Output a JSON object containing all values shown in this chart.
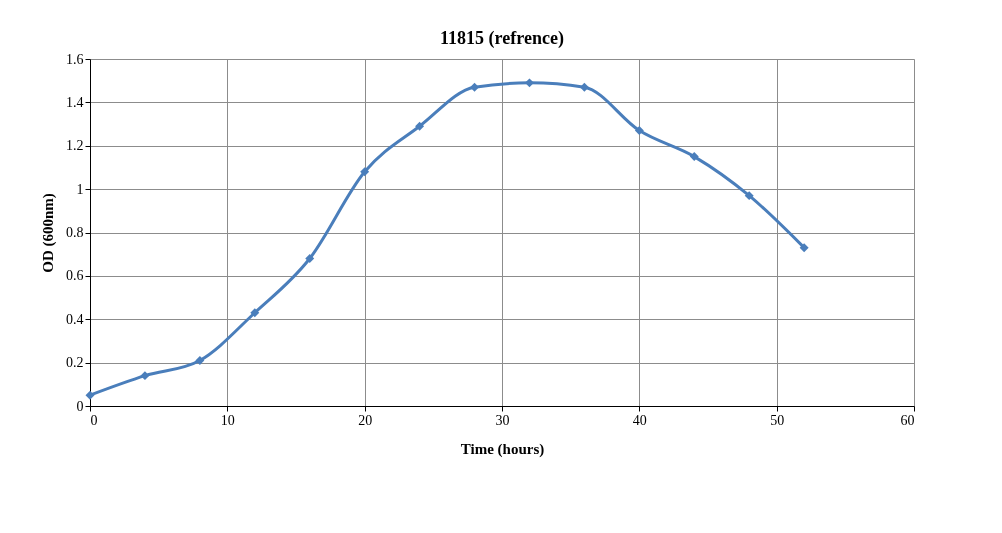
{
  "chart_data": {
    "type": "line",
    "title": "11815 (refrence)",
    "xlabel": "Time (hours)",
    "ylabel": "OD (600nm)",
    "x": [
      0,
      4,
      8,
      12,
      16,
      20,
      24,
      28,
      32,
      36,
      40,
      44,
      48,
      52
    ],
    "series": [
      {
        "color": "#4a7ebb",
        "values": [
          0.05,
          0.14,
          0.21,
          0.43,
          0.68,
          1.08,
          1.29,
          1.47,
          1.49,
          1.47,
          1.27,
          1.15,
          0.97,
          0.73
        ]
      }
    ],
    "xlim": [
      0,
      60
    ],
    "xticks": [
      0,
      10,
      20,
      30,
      40,
      50,
      60
    ],
    "ylim": [
      0,
      1.6
    ],
    "yticks": [
      0,
      0.2,
      0.4,
      0.6,
      0.8,
      1,
      1.2,
      1.4,
      1.6
    ],
    "grid": true,
    "marker": "diamond",
    "line_style": "solid"
  }
}
